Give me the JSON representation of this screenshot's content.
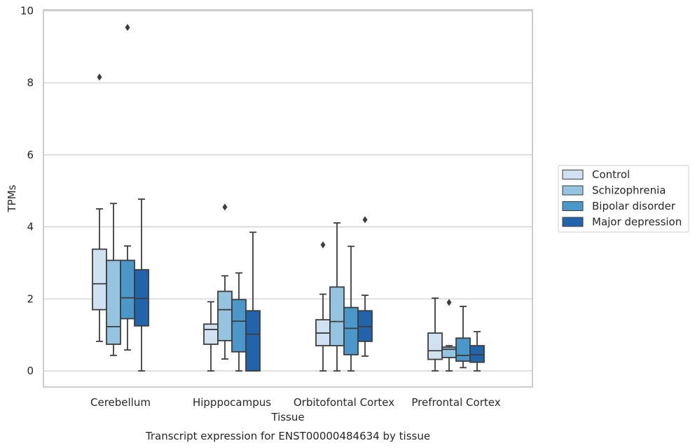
{
  "chart_data": {
    "type": "box",
    "title": "Transcript expression for ENST00000484634 by tissue",
    "xlabel": "Tissue",
    "ylabel": "TPMs",
    "ylim": [
      -0.45,
      10.05
    ],
    "yticks": [
      "0",
      "2",
      "4",
      "6",
      "8",
      "10"
    ],
    "ytick_values": [
      0,
      2,
      4,
      6,
      8,
      10
    ],
    "grid": true,
    "legend_position": "right",
    "categories": [
      "Cerebellum",
      "Hipppocampus",
      "Orbitofontal Cortex",
      "Prefrontal Cortex"
    ],
    "series": [
      {
        "name": "Control",
        "color": "#d0e1f2",
        "boxes": [
          {
            "whislo": 0.82,
            "q1": 1.7,
            "med": 2.42,
            "q3": 3.38,
            "whishi": 4.5,
            "fliers": [
              8.16
            ]
          },
          {
            "whislo": 0.0,
            "q1": 0.74,
            "med": 1.15,
            "q3": 1.3,
            "whishi": 1.92,
            "fliers": []
          },
          {
            "whislo": 0.0,
            "q1": 0.7,
            "med": 1.05,
            "q3": 1.42,
            "whishi": 2.13,
            "fliers": [
              3.5
            ]
          },
          {
            "whislo": 0.0,
            "q1": 0.32,
            "med": 0.56,
            "q3": 1.05,
            "whishi": 2.02,
            "fliers": []
          }
        ]
      },
      {
        "name": "Schizophrenia",
        "color": "#94c4df",
        "boxes": [
          {
            "whislo": 0.43,
            "q1": 0.74,
            "med": 1.23,
            "q3": 3.07,
            "whishi": 4.65,
            "fliers": []
          },
          {
            "whislo": 0.33,
            "q1": 0.84,
            "med": 1.7,
            "q3": 2.21,
            "whishi": 2.64,
            "fliers": [
              4.55
            ]
          },
          {
            "whislo": 0.0,
            "q1": 0.7,
            "med": 1.37,
            "q3": 2.33,
            "whishi": 4.11,
            "fliers": []
          },
          {
            "whislo": 0.0,
            "q1": 0.37,
            "med": 0.6,
            "q3": 0.66,
            "whishi": 0.7,
            "fliers": [
              1.9
            ]
          }
        ]
      },
      {
        "name": "Bipolar disorder",
        "color": "#4a98c9",
        "boxes": [
          {
            "whislo": 0.58,
            "q1": 1.45,
            "med": 2.03,
            "q3": 3.07,
            "whishi": 3.47,
            "fliers": [
              9.54
            ]
          },
          {
            "whislo": 0.0,
            "q1": 0.53,
            "med": 1.38,
            "q3": 1.98,
            "whishi": 2.72,
            "fliers": []
          },
          {
            "whislo": 0.0,
            "q1": 0.45,
            "med": 1.18,
            "q3": 1.76,
            "whishi": 3.46,
            "fliers": []
          },
          {
            "whislo": 0.09,
            "q1": 0.27,
            "med": 0.43,
            "q3": 0.91,
            "whishi": 1.79,
            "fliers": []
          }
        ]
      },
      {
        "name": "Major depression",
        "color": "#2164ab",
        "boxes": [
          {
            "whislo": 0.0,
            "q1": 1.25,
            "med": 2.01,
            "q3": 2.81,
            "whishi": 4.77,
            "fliers": []
          },
          {
            "whislo": 0.0,
            "q1": 0.0,
            "med": 1.02,
            "q3": 1.67,
            "whishi": 3.85,
            "fliers": []
          },
          {
            "whislo": 0.41,
            "q1": 0.82,
            "med": 1.23,
            "q3": 1.67,
            "whishi": 2.1,
            "fliers": [
              4.2
            ]
          },
          {
            "whislo": 0.0,
            "q1": 0.24,
            "med": 0.45,
            "q3": 0.7,
            "whishi": 1.09,
            "fliers": []
          }
        ]
      }
    ]
  }
}
